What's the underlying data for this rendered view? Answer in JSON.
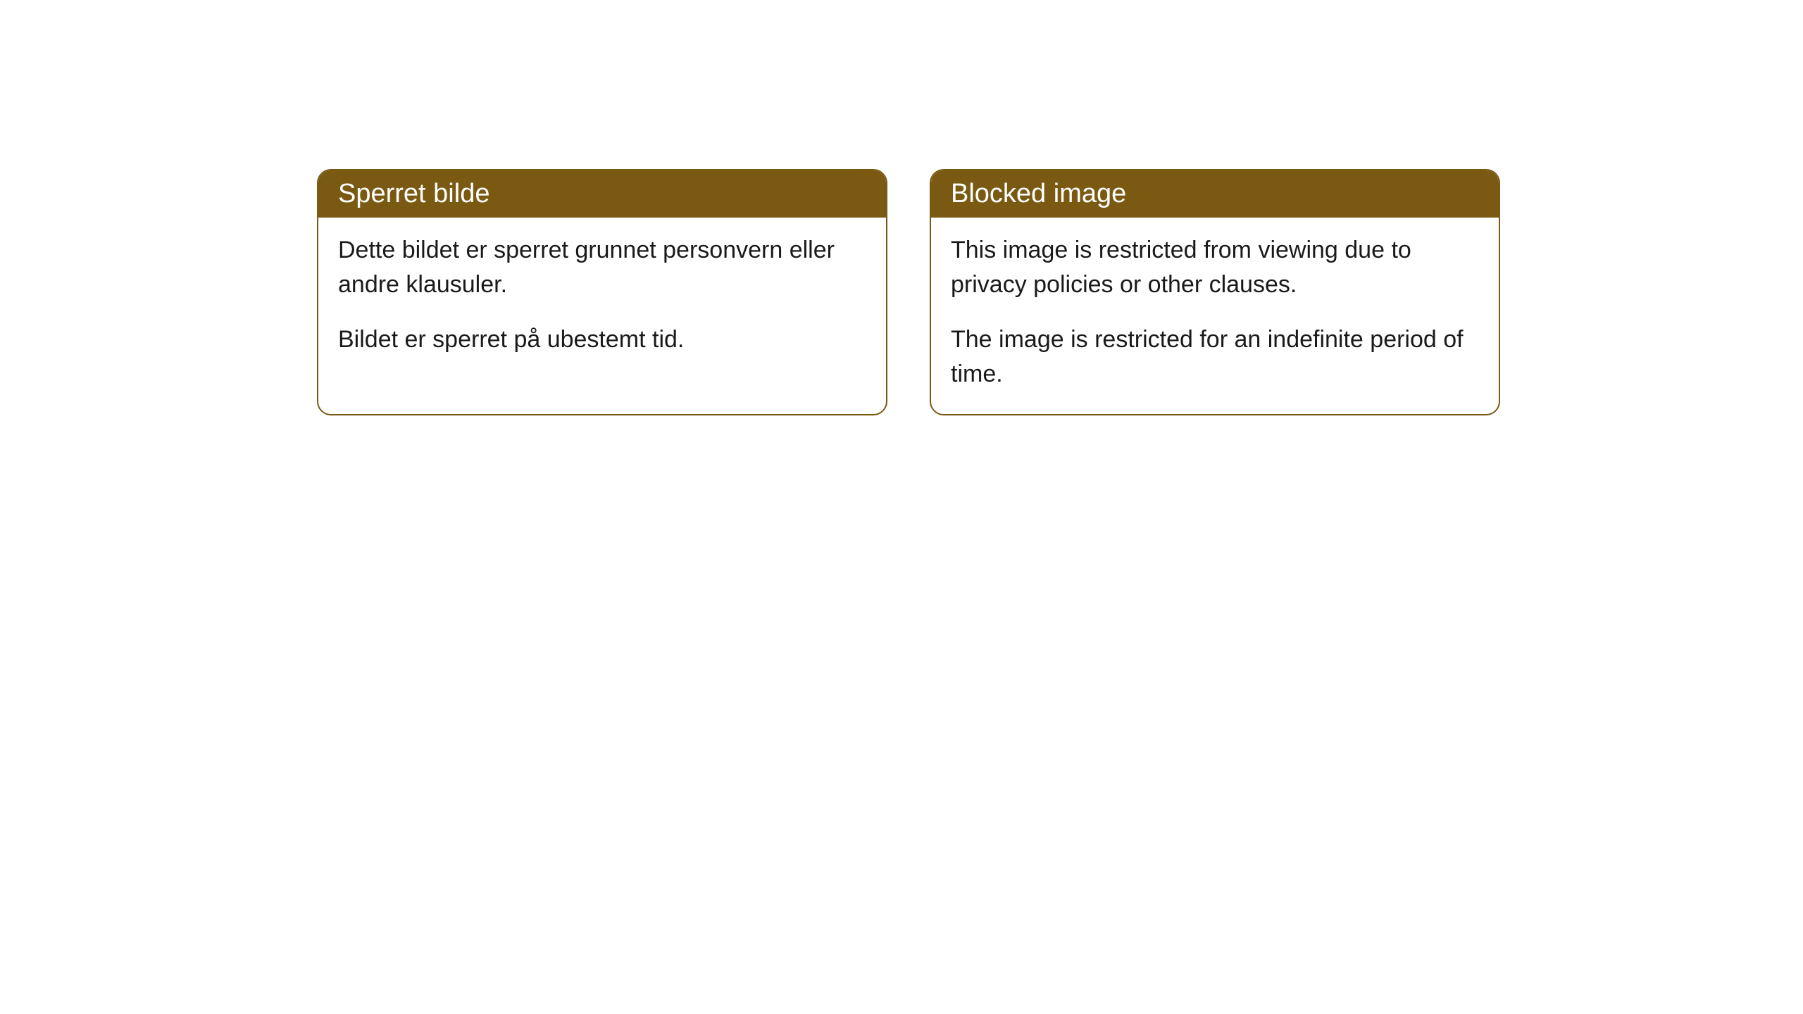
{
  "cards": [
    {
      "header": "Sperret bilde",
      "paragraph1": "Dette bildet er sperret grunnet personvern eller andre klausuler.",
      "paragraph2": "Bildet er sperret på ubestemt tid."
    },
    {
      "header": "Blocked image",
      "paragraph1": "This image is restricted from viewing due to privacy policies or other clauses.",
      "paragraph2": "The image is restricted for an indefinite period of time."
    }
  ],
  "styling": {
    "header_background": "#7a5a12",
    "header_text_color": "#ffffff",
    "border_color": "#7a5a12",
    "body_background": "#ffffff",
    "body_text_color": "#1a1a1a",
    "border_radius": 20,
    "header_fontsize": 38,
    "body_fontsize": 34
  }
}
